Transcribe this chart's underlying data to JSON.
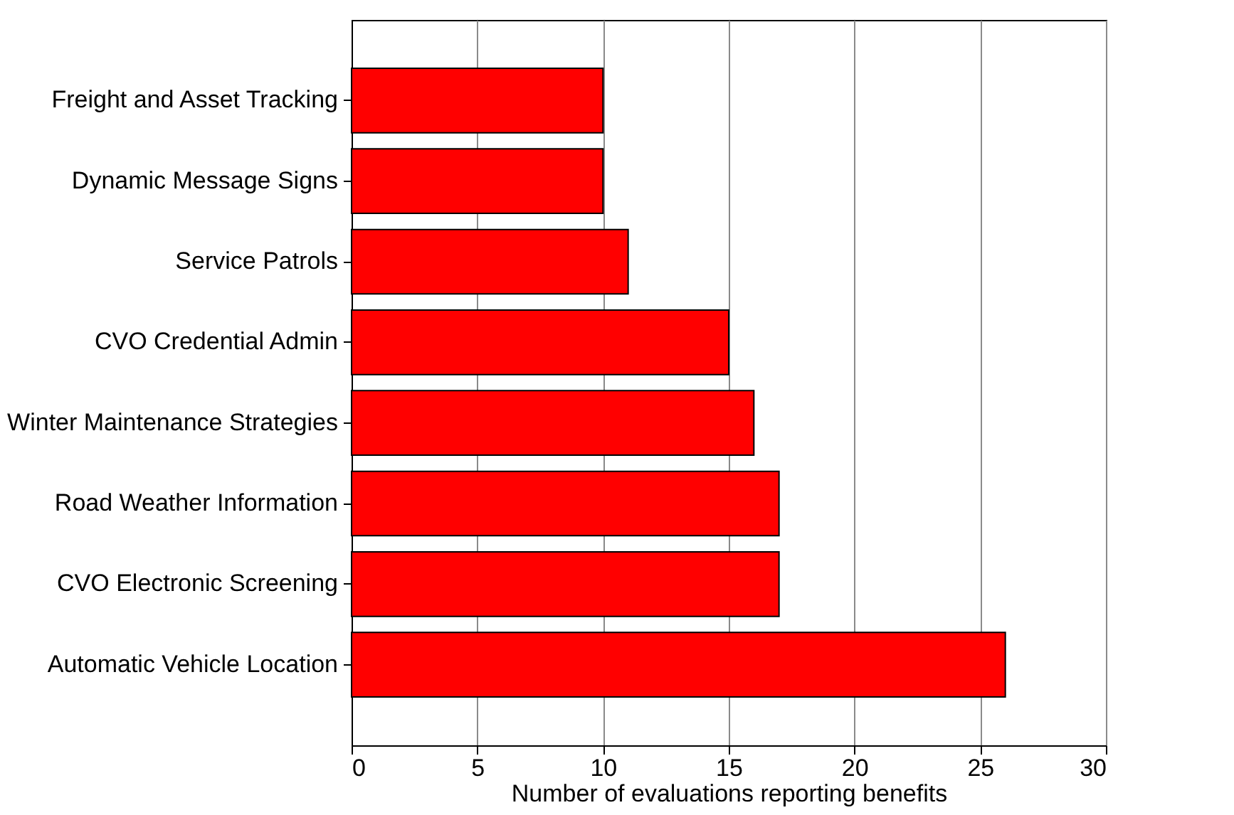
{
  "chart_data": {
    "type": "bar",
    "orientation": "horizontal",
    "xlabel": "Number of evaluations reporting benefits",
    "categories": [
      "Freight and Asset Tracking",
      "Dynamic Message Signs",
      "Service Patrols",
      "CVO Credential Admin",
      "Winter Maintenance Strategies",
      "Road Weather Information",
      "CVO Electronic Screening",
      "Automatic Vehicle Location"
    ],
    "values": [
      10,
      10,
      11,
      15,
      16,
      17,
      17,
      26
    ],
    "color": "#ff0000",
    "xlim": [
      0,
      30
    ],
    "xticks": [
      0,
      5,
      10,
      15,
      20,
      25,
      30
    ],
    "grid": "x"
  }
}
